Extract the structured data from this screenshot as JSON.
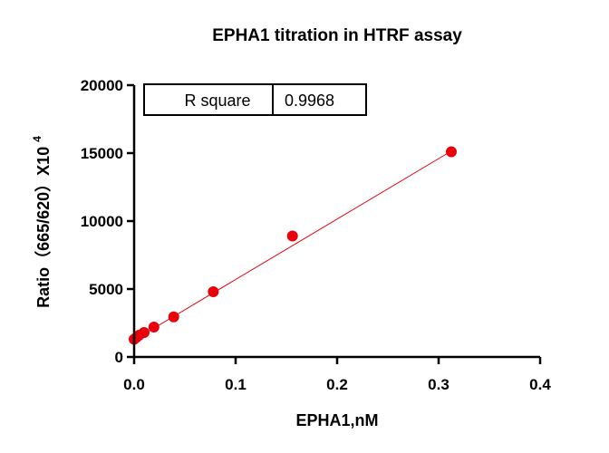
{
  "chart_data": {
    "type": "scatter",
    "title": "EPHA1 titration in HTRF assay",
    "xlabel": "EPHA1,nM",
    "ylabel_main": "Ratio（665/620）X10",
    "ylabel_exponent": "4",
    "xlim": [
      0,
      0.4
    ],
    "ylim": [
      0,
      20000
    ],
    "x_ticks": [
      0,
      0.1,
      0.2,
      0.3,
      0.4
    ],
    "x_tick_labels": [
      "0.0",
      "0.1",
      "0.2",
      "0.3",
      "0.4"
    ],
    "y_ticks": [
      0,
      5000,
      10000,
      15000,
      20000
    ],
    "y_tick_labels": [
      "0",
      "5000",
      "10000",
      "15000",
      "20000"
    ],
    "grid": false,
    "series": [
      {
        "x": [
          0,
          0.0024,
          0.0049,
          0.0098,
          0.0195,
          0.039,
          0.078,
          0.156,
          0.3125
        ],
        "y": [
          1300,
          1450,
          1600,
          1800,
          2200,
          2950,
          4800,
          8900,
          15100
        ],
        "color": "#e8000b"
      }
    ],
    "fit_line": {
      "x_start": 0,
      "x_end": 0.3125,
      "y_start": 1250,
      "y_end": 15150,
      "color": "#e8000b"
    },
    "stats_table": {
      "label": "R square",
      "value": "0.9968"
    }
  }
}
